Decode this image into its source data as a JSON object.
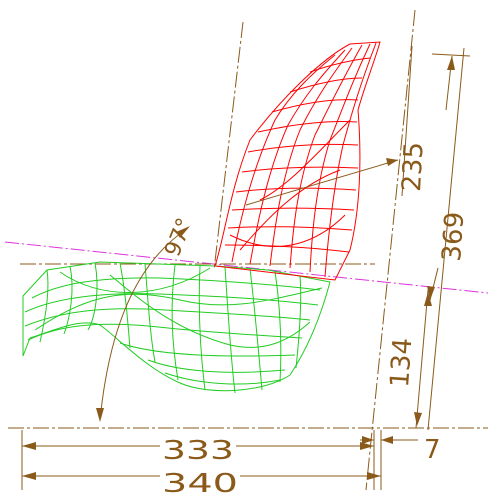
{
  "colors": {
    "background": "#ffffff",
    "dimension_lines": "#8a5a1a",
    "backrest_mesh": "#ff0000",
    "seat_mesh": "#22cc22",
    "reference_line": "#dd33dd"
  },
  "dimensions": {
    "angle_label": "97°",
    "backrest_length": "235",
    "backrest_height": "369",
    "seat_height": "134",
    "seat_depth_inner": "333",
    "seat_depth_outer": "340",
    "offset": "7"
  }
}
